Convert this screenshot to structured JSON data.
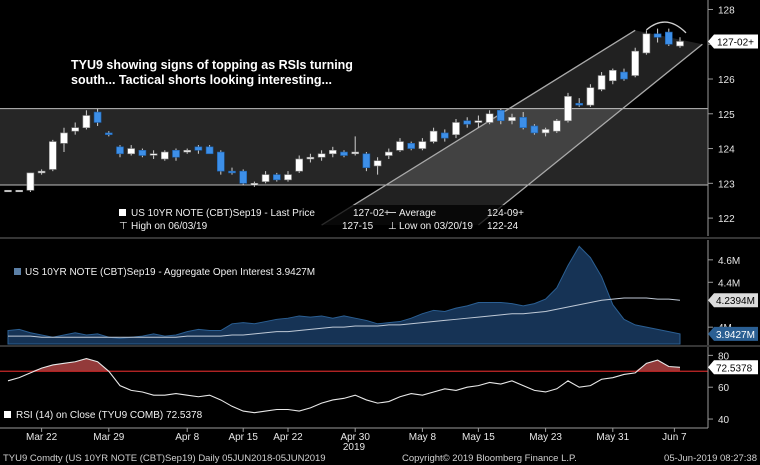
{
  "annotation": {
    "line1": "TYU9 showing signs of topping as RSIs turning",
    "line2": "south... Tactical shorts looking interesting..."
  },
  "footer": {
    "left": "TYU9 Comdty (US 10YR NOTE (CBT)Sep19)  Daily 05JUN2018-05JUN2019",
    "center": "Copyright© 2019 Bloomberg Finance L.P.",
    "right": "05-Jun-2019 08:27:38"
  },
  "colors": {
    "up": "#ffffff",
    "down": "#3d8fe8",
    "oi_fill": "#163355",
    "oi_line": "#2b5f93",
    "rsi_line": "#e8e8e8",
    "rsi_overbought": "#c82828",
    "channel": "#a9a9a9",
    "range_box": "#262626"
  },
  "chart_data": [
    {
      "type": "candlestick",
      "panel": "price",
      "legend": {
        "last_label": "US 10YR NOTE (CBT)Sep19 - Last Price",
        "last_value": "127-02+",
        "average_label": "Average",
        "average_value": "124-09+",
        "high_label": "High on 06/03/19",
        "high_value": "127-15",
        "low_label": "Low on 03/20/19",
        "low_value": "122-24"
      },
      "yticks": [
        "128",
        "127",
        "126",
        "125",
        "124",
        "123",
        "122"
      ],
      "ylim": [
        121.6,
        128.1
      ],
      "last_price_label": "127-02+",
      "last_price_value": 127.08,
      "range_box": {
        "low": 122.95,
        "high": 125.15
      },
      "channel": {
        "lower": [
          [
            42,
            121.8
          ],
          [
            62,
            127.0
          ]
        ],
        "upper": [
          [
            28,
            121.8
          ],
          [
            56,
            127.4
          ]
        ]
      },
      "candles": [
        {
          "i": 0,
          "o": 122.8,
          "h": 122.8,
          "l": 122.8,
          "c": 122.8
        },
        {
          "i": 1,
          "o": 122.8,
          "h": 122.8,
          "l": 122.8,
          "c": 122.8
        },
        {
          "i": 2,
          "o": 122.8,
          "h": 123.3,
          "l": 122.75,
          "c": 123.3
        },
        {
          "i": 3,
          "o": 123.3,
          "h": 123.4,
          "l": 123.25,
          "c": 123.35
        },
        {
          "i": 4,
          "o": 123.4,
          "h": 124.25,
          "l": 123.35,
          "c": 124.2
        },
        {
          "i": 5,
          "o": 124.15,
          "h": 124.6,
          "l": 123.9,
          "c": 124.45
        },
        {
          "i": 6,
          "o": 124.5,
          "h": 124.75,
          "l": 124.4,
          "c": 124.6
        },
        {
          "i": 7,
          "o": 124.6,
          "h": 125.1,
          "l": 124.55,
          "c": 124.95
        },
        {
          "i": 8,
          "o": 125.05,
          "h": 125.15,
          "l": 124.65,
          "c": 124.75
        },
        {
          "i": 9,
          "o": 124.45,
          "h": 124.5,
          "l": 124.35,
          "c": 124.4
        },
        {
          "i": 10,
          "o": 124.05,
          "h": 124.1,
          "l": 123.75,
          "c": 123.85
        },
        {
          "i": 11,
          "o": 123.85,
          "h": 124.1,
          "l": 123.8,
          "c": 124.0
        },
        {
          "i": 12,
          "o": 123.95,
          "h": 124.0,
          "l": 123.75,
          "c": 123.8
        },
        {
          "i": 13,
          "o": 123.85,
          "h": 123.95,
          "l": 123.7,
          "c": 123.85
        },
        {
          "i": 14,
          "o": 123.7,
          "h": 123.95,
          "l": 123.65,
          "c": 123.9
        },
        {
          "i": 15,
          "o": 123.95,
          "h": 124.0,
          "l": 123.65,
          "c": 123.75
        },
        {
          "i": 16,
          "o": 123.9,
          "h": 124.0,
          "l": 123.85,
          "c": 123.95
        },
        {
          "i": 17,
          "o": 124.05,
          "h": 124.1,
          "l": 123.85,
          "c": 123.95
        },
        {
          "i": 18,
          "o": 124.05,
          "h": 124.1,
          "l": 123.85,
          "c": 123.85
        },
        {
          "i": 19,
          "o": 123.9,
          "h": 123.95,
          "l": 123.25,
          "c": 123.35
        },
        {
          "i": 20,
          "o": 123.35,
          "h": 123.45,
          "l": 123.25,
          "c": 123.3
        },
        {
          "i": 21,
          "o": 123.35,
          "h": 123.4,
          "l": 122.95,
          "c": 123.0
        },
        {
          "i": 22,
          "o": 122.95,
          "h": 123.05,
          "l": 122.9,
          "c": 123.0
        },
        {
          "i": 23,
          "o": 123.05,
          "h": 123.35,
          "l": 123.0,
          "c": 123.25
        },
        {
          "i": 24,
          "o": 123.25,
          "h": 123.3,
          "l": 123.05,
          "c": 123.1
        },
        {
          "i": 25,
          "o": 123.1,
          "h": 123.35,
          "l": 123.05,
          "c": 123.25
        },
        {
          "i": 26,
          "o": 123.35,
          "h": 123.8,
          "l": 123.3,
          "c": 123.7
        },
        {
          "i": 27,
          "o": 123.7,
          "h": 123.85,
          "l": 123.6,
          "c": 123.75
        },
        {
          "i": 28,
          "o": 123.75,
          "h": 123.95,
          "l": 123.65,
          "c": 123.85
        },
        {
          "i": 29,
          "o": 123.85,
          "h": 124.05,
          "l": 123.75,
          "c": 123.95
        },
        {
          "i": 30,
          "o": 123.9,
          "h": 123.95,
          "l": 123.75,
          "c": 123.8
        },
        {
          "i": 31,
          "o": 123.85,
          "h": 124.35,
          "l": 123.8,
          "c": 123.9
        },
        {
          "i": 32,
          "o": 123.85,
          "h": 123.9,
          "l": 123.35,
          "c": 123.45
        },
        {
          "i": 33,
          "o": 123.5,
          "h": 123.75,
          "l": 123.25,
          "c": 123.65
        },
        {
          "i": 34,
          "o": 123.8,
          "h": 124.0,
          "l": 123.7,
          "c": 123.9
        },
        {
          "i": 35,
          "o": 123.95,
          "h": 124.3,
          "l": 123.9,
          "c": 124.2
        },
        {
          "i": 36,
          "o": 124.15,
          "h": 124.2,
          "l": 123.95,
          "c": 124.0
        },
        {
          "i": 37,
          "o": 124.0,
          "h": 124.3,
          "l": 123.95,
          "c": 124.2
        },
        {
          "i": 38,
          "o": 124.2,
          "h": 124.6,
          "l": 124.15,
          "c": 124.5
        },
        {
          "i": 39,
          "o": 124.45,
          "h": 124.55,
          "l": 124.2,
          "c": 124.3
        },
        {
          "i": 40,
          "o": 124.4,
          "h": 124.85,
          "l": 124.3,
          "c": 124.75
        },
        {
          "i": 41,
          "o": 124.8,
          "h": 124.9,
          "l": 124.6,
          "c": 124.7
        },
        {
          "i": 42,
          "o": 124.75,
          "h": 124.95,
          "l": 124.6,
          "c": 124.8
        },
        {
          "i": 43,
          "o": 124.75,
          "h": 125.1,
          "l": 124.7,
          "c": 125.0
        },
        {
          "i": 44,
          "o": 125.1,
          "h": 125.15,
          "l": 124.7,
          "c": 124.8
        },
        {
          "i": 45,
          "o": 124.8,
          "h": 125.0,
          "l": 124.7,
          "c": 124.9
        },
        {
          "i": 46,
          "o": 124.9,
          "h": 125.05,
          "l": 124.55,
          "c": 124.6
        },
        {
          "i": 47,
          "o": 124.65,
          "h": 124.7,
          "l": 124.4,
          "c": 124.45
        },
        {
          "i": 48,
          "o": 124.45,
          "h": 124.6,
          "l": 124.35,
          "c": 124.55
        },
        {
          "i": 49,
          "o": 124.5,
          "h": 124.85,
          "l": 124.45,
          "c": 124.8
        },
        {
          "i": 50,
          "o": 124.8,
          "h": 125.6,
          "l": 124.75,
          "c": 125.5
        },
        {
          "i": 51,
          "o": 125.3,
          "h": 125.45,
          "l": 125.2,
          "c": 125.25
        },
        {
          "i": 52,
          "o": 125.25,
          "h": 125.85,
          "l": 125.2,
          "c": 125.75
        },
        {
          "i": 53,
          "o": 125.7,
          "h": 126.2,
          "l": 125.65,
          "c": 126.1
        },
        {
          "i": 54,
          "o": 125.95,
          "h": 126.3,
          "l": 125.85,
          "c": 126.25
        },
        {
          "i": 55,
          "o": 126.2,
          "h": 126.3,
          "l": 125.95,
          "c": 126.0
        },
        {
          "i": 56,
          "o": 126.1,
          "h": 126.9,
          "l": 126.05,
          "c": 126.8
        },
        {
          "i": 57,
          "o": 126.75,
          "h": 127.4,
          "l": 126.7,
          "c": 127.3
        },
        {
          "i": 58,
          "o": 127.3,
          "h": 127.45,
          "l": 127.05,
          "c": 127.2
        },
        {
          "i": 59,
          "o": 127.35,
          "h": 127.45,
          "l": 126.95,
          "c": 127.0
        },
        {
          "i": 60,
          "o": 126.95,
          "h": 127.2,
          "l": 126.9,
          "c": 127.08
        }
      ]
    },
    {
      "type": "area",
      "panel": "open_interest",
      "legend": "US 10YR NOTE (CBT)Sep19 - Aggregate Open Interest 3.9427M",
      "yticks": [
        "4.6M",
        "4.4M",
        "4M"
      ],
      "ylim": [
        3.85,
        4.75
      ],
      "labels": [
        "4.2394M",
        "3.9427M"
      ],
      "oi": [
        3.97,
        3.98,
        3.95,
        3.93,
        3.91,
        3.93,
        3.95,
        3.93,
        3.94,
        3.91,
        3.9,
        3.91,
        3.92,
        3.94,
        3.92,
        3.93,
        3.96,
        3.98,
        3.97,
        3.97,
        4.03,
        4.04,
        4.03,
        4.05,
        4.07,
        4.08,
        4.1,
        4.09,
        4.1,
        4.08,
        4.1,
        4.08,
        4.06,
        4.03,
        4.04,
        4.05,
        4.08,
        4.12,
        4.15,
        4.14,
        4.17,
        4.19,
        4.22,
        4.22,
        4.22,
        4.21,
        4.19,
        4.21,
        4.25,
        4.35,
        4.55,
        4.72,
        4.62,
        4.45,
        4.2,
        4.07,
        4.02,
        4.0,
        3.98,
        3.96,
        3.94
      ],
      "oi_avg": [
        3.92,
        3.92,
        3.92,
        3.91,
        3.91,
        3.91,
        3.91,
        3.91,
        3.91,
        3.91,
        3.91,
        3.91,
        3.91,
        3.91,
        3.91,
        3.91,
        3.92,
        3.92,
        3.92,
        3.92,
        3.93,
        3.93,
        3.94,
        3.95,
        3.96,
        3.96,
        3.97,
        3.98,
        3.99,
        4.0,
        4.0,
        4.01,
        4.01,
        4.01,
        4.02,
        4.02,
        4.03,
        4.04,
        4.05,
        4.06,
        4.07,
        4.08,
        4.09,
        4.1,
        4.11,
        4.12,
        4.12,
        4.13,
        4.14,
        4.16,
        4.18,
        4.2,
        4.22,
        4.24,
        4.25,
        4.26,
        4.26,
        4.26,
        4.25,
        4.25,
        4.24
      ]
    },
    {
      "type": "line",
      "panel": "rsi",
      "legend": "RSI (14)  on Close (TYU9 COMB) 72.5378",
      "yticks": [
        "80",
        "60",
        "40"
      ],
      "ylim": [
        35,
        84
      ],
      "overbought": 70,
      "value_label": "72.5378",
      "rsi": [
        64,
        66,
        69,
        72,
        74,
        75,
        76,
        78,
        76,
        70,
        61,
        58,
        57,
        55,
        55,
        56,
        55,
        54,
        55,
        52,
        48,
        45,
        44,
        45,
        46,
        46,
        45,
        47,
        50,
        52,
        53,
        55,
        52,
        50,
        51,
        54,
        56,
        55,
        57,
        59,
        58,
        60,
        61,
        63,
        62,
        64,
        61,
        58,
        57,
        59,
        64,
        60,
        61,
        65,
        66,
        68,
        69,
        75,
        77,
        73,
        72.5
      ]
    }
  ],
  "xaxis": {
    "labels": [
      "Mar 22",
      "Mar 29",
      "Apr 8",
      "Apr 15",
      "Apr 22",
      "Apr 30",
      "May 8",
      "May 15",
      "May 23",
      "May 31",
      "Jun 7"
    ],
    "positions": [
      3,
      9,
      16,
      21,
      25,
      31,
      37,
      42,
      48,
      54,
      59.5
    ],
    "year": "2019"
  }
}
